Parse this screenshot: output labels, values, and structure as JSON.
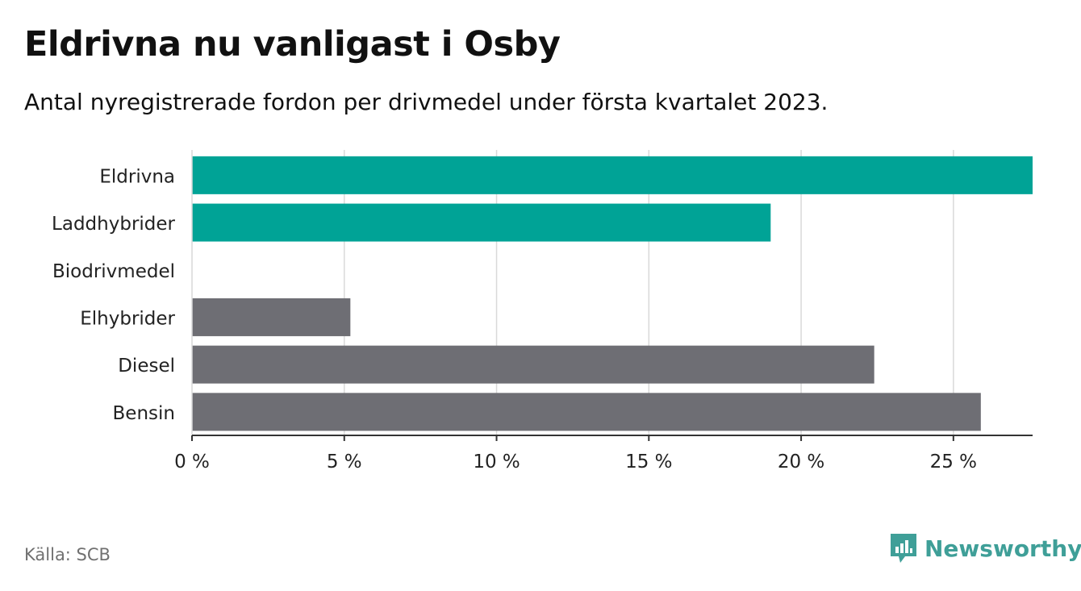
{
  "title": "Eldrivna nu vanligast i Osby",
  "subtitle": "Antal nyregistrerade fordon per drivmedel under första kvartalet 2023.",
  "source": "Källa: SCB",
  "brand": {
    "name": "Newsworthy",
    "icon": "newsworthy-logo-icon",
    "color": "#3f9f98"
  },
  "colors": {
    "highlight": "#00a396",
    "default": "#6e6e74",
    "grid": "#d9d9d9",
    "axis": "#333333"
  },
  "chart_data": {
    "type": "bar",
    "orientation": "horizontal",
    "categories": [
      "Eldrivna",
      "Laddhybrider",
      "Biodrivmedel",
      "Elhybrider",
      "Diesel",
      "Bensin"
    ],
    "values": [
      27.6,
      19.0,
      0,
      5.2,
      22.4,
      25.9
    ],
    "highlight": [
      true,
      true,
      false,
      false,
      false,
      false
    ],
    "xlim": [
      0,
      27.6
    ],
    "xticks": [
      0,
      5,
      10,
      15,
      20,
      25
    ],
    "tick_labels": [
      "0 %",
      "5 %",
      "10 %",
      "15 %",
      "20 %",
      "25 %"
    ],
    "grid": true,
    "legend": "none"
  }
}
